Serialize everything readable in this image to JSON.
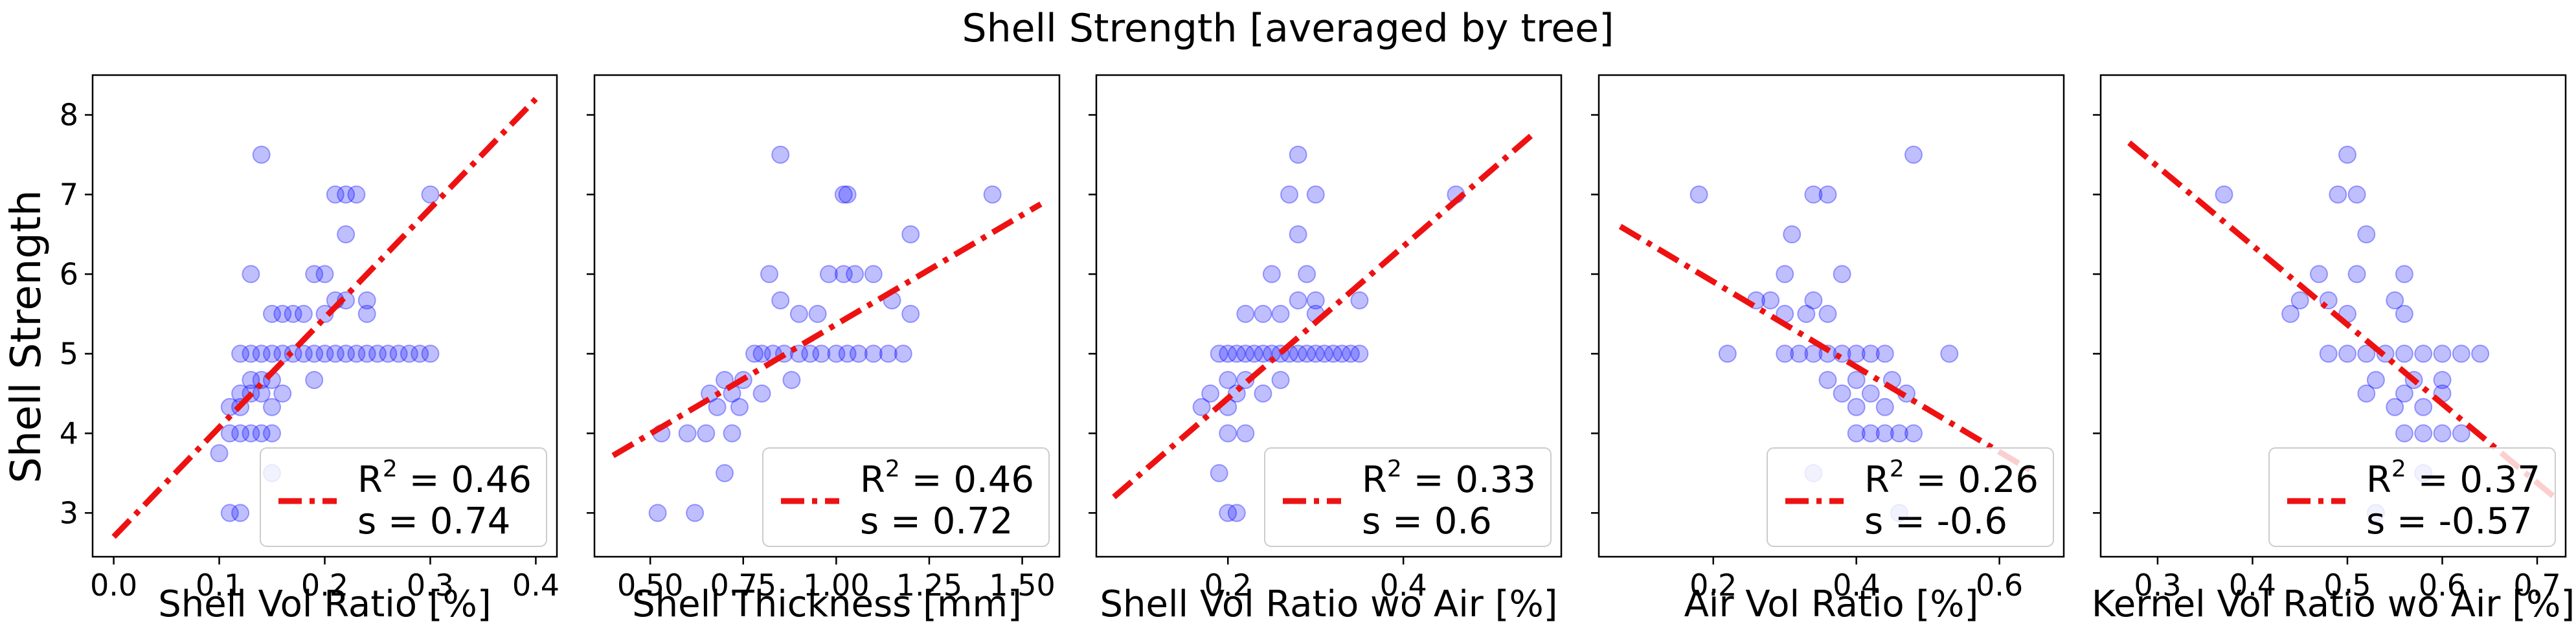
{
  "chart_data": {
    "type": "scatter",
    "title": "Shell Strength [averaged by tree]",
    "ylabel": "Shell Strength",
    "ylim": [
      2.45,
      8.5
    ],
    "yticks": [
      3,
      4,
      5,
      6,
      7,
      8
    ],
    "colors": {
      "points": "#0000ff",
      "fit": "#ee1111",
      "frame": "#000000"
    },
    "legend_placement": "lower right",
    "grid": false,
    "panels": [
      {
        "xlabel": "Shell Vol Ratio [%]",
        "xlim": [
          -0.02,
          0.42
        ],
        "xticks": [
          0.0,
          0.1,
          0.2,
          0.3,
          0.4
        ],
        "xtick_labels": [
          "0.0",
          "0.1",
          "0.2",
          "0.3",
          "0.4"
        ],
        "fit": {
          "x": [
            0.0,
            0.4
          ],
          "y": [
            2.7,
            8.2
          ]
        },
        "legend": {
          "r2_prefix": "R",
          "r2_sup": "2",
          "r2_value": " = 0.46",
          "s_label": "s   = 0.74"
        },
        "points": [
          [
            0.14,
            7.5
          ],
          [
            0.13,
            6.0
          ],
          [
            0.19,
            6.0
          ],
          [
            0.2,
            6.0
          ],
          [
            0.21,
            7.0
          ],
          [
            0.22,
            7.0
          ],
          [
            0.23,
            7.0
          ],
          [
            0.3,
            7.0
          ],
          [
            0.22,
            6.5
          ],
          [
            0.21,
            5.67
          ],
          [
            0.22,
            5.67
          ],
          [
            0.24,
            5.67
          ],
          [
            0.18,
            5.5
          ],
          [
            0.2,
            5.5
          ],
          [
            0.15,
            5.5
          ],
          [
            0.16,
            5.5
          ],
          [
            0.17,
            5.5
          ],
          [
            0.24,
            5.5
          ],
          [
            0.12,
            5.0
          ],
          [
            0.13,
            5.0
          ],
          [
            0.14,
            5.0
          ],
          [
            0.15,
            5.0
          ],
          [
            0.16,
            5.0
          ],
          [
            0.17,
            5.0
          ],
          [
            0.18,
            5.0
          ],
          [
            0.19,
            5.0
          ],
          [
            0.2,
            5.0
          ],
          [
            0.21,
            5.0
          ],
          [
            0.22,
            5.0
          ],
          [
            0.23,
            5.0
          ],
          [
            0.24,
            5.0
          ],
          [
            0.25,
            5.0
          ],
          [
            0.26,
            5.0
          ],
          [
            0.27,
            5.0
          ],
          [
            0.28,
            5.0
          ],
          [
            0.29,
            5.0
          ],
          [
            0.3,
            5.0
          ],
          [
            0.13,
            4.67
          ],
          [
            0.14,
            4.67
          ],
          [
            0.15,
            4.67
          ],
          [
            0.19,
            4.67
          ],
          [
            0.12,
            4.5
          ],
          [
            0.13,
            4.5
          ],
          [
            0.14,
            4.5
          ],
          [
            0.16,
            4.5
          ],
          [
            0.11,
            4.33
          ],
          [
            0.12,
            4.33
          ],
          [
            0.15,
            4.33
          ],
          [
            0.11,
            4.0
          ],
          [
            0.12,
            4.0
          ],
          [
            0.13,
            4.0
          ],
          [
            0.14,
            4.0
          ],
          [
            0.15,
            4.0
          ],
          [
            0.1,
            3.75
          ],
          [
            0.15,
            3.5
          ],
          [
            0.11,
            3.0
          ],
          [
            0.12,
            3.0
          ]
        ]
      },
      {
        "xlabel": "Shell Thickness [mm]",
        "xlim": [
          0.35,
          1.6
        ],
        "xticks": [
          0.5,
          0.75,
          1.0,
          1.25,
          1.5
        ],
        "xtick_labels": [
          "0.50",
          "0.75",
          "1.00",
          "1.25",
          "1.50"
        ],
        "fit": {
          "x": [
            0.4,
            1.55
          ],
          "y": [
            3.72,
            6.88
          ]
        },
        "legend": {
          "r2_prefix": "R",
          "r2_sup": "2",
          "r2_value": " = 0.46",
          "s_label": "s   = 0.72"
        },
        "points": [
          [
            0.85,
            7.5
          ],
          [
            1.42,
            7.0
          ],
          [
            1.02,
            7.0
          ],
          [
            1.03,
            7.0
          ],
          [
            1.2,
            6.5
          ],
          [
            0.82,
            6.0
          ],
          [
            0.98,
            6.0
          ],
          [
            1.02,
            6.0
          ],
          [
            1.05,
            6.0
          ],
          [
            1.1,
            6.0
          ],
          [
            1.15,
            5.67
          ],
          [
            0.85,
            5.67
          ],
          [
            0.9,
            5.5
          ],
          [
            0.95,
            5.5
          ],
          [
            1.2,
            5.5
          ],
          [
            0.78,
            5.0
          ],
          [
            0.8,
            5.0
          ],
          [
            0.83,
            5.0
          ],
          [
            0.86,
            5.0
          ],
          [
            0.9,
            5.0
          ],
          [
            0.93,
            5.0
          ],
          [
            0.96,
            5.0
          ],
          [
            1.0,
            5.0
          ],
          [
            1.03,
            5.0
          ],
          [
            1.06,
            5.0
          ],
          [
            1.1,
            5.0
          ],
          [
            1.14,
            5.0
          ],
          [
            1.18,
            5.0
          ],
          [
            0.7,
            4.67
          ],
          [
            0.75,
            4.67
          ],
          [
            0.88,
            4.67
          ],
          [
            0.66,
            4.5
          ],
          [
            0.72,
            4.5
          ],
          [
            0.8,
            4.5
          ],
          [
            0.68,
            4.33
          ],
          [
            0.74,
            4.33
          ],
          [
            0.6,
            4.0
          ],
          [
            0.65,
            4.0
          ],
          [
            0.72,
            4.0
          ],
          [
            0.53,
            4.0
          ],
          [
            0.7,
            3.5
          ],
          [
            0.52,
            3.0
          ],
          [
            0.62,
            3.0
          ]
        ]
      },
      {
        "xlabel": "Shell Vol Ratio wo Air [%]",
        "xlim": [
          0.05,
          0.58
        ],
        "xticks": [
          0.2,
          0.4
        ],
        "xtick_labels": [
          "0.2",
          "0.4"
        ],
        "fit": {
          "x": [
            0.07,
            0.55
          ],
          "y": [
            3.2,
            7.78
          ]
        },
        "legend": {
          "r2_prefix": "R",
          "r2_sup": "2",
          "r2_value": " = 0.33",
          "s_label": "s   = 0.6"
        },
        "points": [
          [
            0.28,
            7.5
          ],
          [
            0.27,
            7.0
          ],
          [
            0.3,
            7.0
          ],
          [
            0.46,
            7.0
          ],
          [
            0.28,
            6.5
          ],
          [
            0.25,
            6.0
          ],
          [
            0.29,
            6.0
          ],
          [
            0.28,
            5.67
          ],
          [
            0.3,
            5.67
          ],
          [
            0.35,
            5.67
          ],
          [
            0.22,
            5.5
          ],
          [
            0.24,
            5.5
          ],
          [
            0.26,
            5.5
          ],
          [
            0.3,
            5.5
          ],
          [
            0.19,
            5.0
          ],
          [
            0.2,
            5.0
          ],
          [
            0.21,
            5.0
          ],
          [
            0.22,
            5.0
          ],
          [
            0.23,
            5.0
          ],
          [
            0.24,
            5.0
          ],
          [
            0.25,
            5.0
          ],
          [
            0.26,
            5.0
          ],
          [
            0.27,
            5.0
          ],
          [
            0.28,
            5.0
          ],
          [
            0.29,
            5.0
          ],
          [
            0.3,
            5.0
          ],
          [
            0.31,
            5.0
          ],
          [
            0.32,
            5.0
          ],
          [
            0.33,
            5.0
          ],
          [
            0.34,
            5.0
          ],
          [
            0.35,
            5.0
          ],
          [
            0.2,
            4.67
          ],
          [
            0.22,
            4.67
          ],
          [
            0.26,
            4.67
          ],
          [
            0.18,
            4.5
          ],
          [
            0.21,
            4.5
          ],
          [
            0.24,
            4.5
          ],
          [
            0.17,
            4.33
          ],
          [
            0.2,
            4.33
          ],
          [
            0.2,
            4.0
          ],
          [
            0.22,
            4.0
          ],
          [
            0.19,
            3.5
          ],
          [
            0.2,
            3.0
          ],
          [
            0.21,
            3.0
          ]
        ]
      },
      {
        "xlabel": "Air Vol Ratio [%]",
        "xlim": [
          0.04,
          0.69
        ],
        "xticks": [
          0.2,
          0.4,
          0.6
        ],
        "xtick_labels": [
          "0.2",
          "0.4",
          "0.6"
        ],
        "fit": {
          "x": [
            0.07,
            0.65
          ],
          "y": [
            6.6,
            3.5
          ]
        },
        "legend": {
          "r2_prefix": "R",
          "r2_sup": "2",
          "r2_value": " = 0.26",
          "s_label": "s   = -0.6"
        },
        "points": [
          [
            0.48,
            7.5
          ],
          [
            0.18,
            7.0
          ],
          [
            0.34,
            7.0
          ],
          [
            0.36,
            7.0
          ],
          [
            0.31,
            6.5
          ],
          [
            0.3,
            6.0
          ],
          [
            0.38,
            6.0
          ],
          [
            0.26,
            5.67
          ],
          [
            0.28,
            5.67
          ],
          [
            0.34,
            5.67
          ],
          [
            0.3,
            5.5
          ],
          [
            0.33,
            5.5
          ],
          [
            0.36,
            5.5
          ],
          [
            0.22,
            5.0
          ],
          [
            0.3,
            5.0
          ],
          [
            0.32,
            5.0
          ],
          [
            0.34,
            5.0
          ],
          [
            0.36,
            5.0
          ],
          [
            0.38,
            5.0
          ],
          [
            0.4,
            5.0
          ],
          [
            0.42,
            5.0
          ],
          [
            0.44,
            5.0
          ],
          [
            0.53,
            5.0
          ],
          [
            0.36,
            4.67
          ],
          [
            0.4,
            4.67
          ],
          [
            0.45,
            4.67
          ],
          [
            0.38,
            4.5
          ],
          [
            0.42,
            4.5
          ],
          [
            0.47,
            4.5
          ],
          [
            0.4,
            4.33
          ],
          [
            0.44,
            4.33
          ],
          [
            0.4,
            4.0
          ],
          [
            0.42,
            4.0
          ],
          [
            0.44,
            4.0
          ],
          [
            0.46,
            4.0
          ],
          [
            0.48,
            4.0
          ],
          [
            0.34,
            3.5
          ],
          [
            0.46,
            3.0
          ]
        ]
      },
      {
        "xlabel": "Kernel Vol Ratio wo Air [%]",
        "xlim": [
          0.24,
          0.73
        ],
        "xticks": [
          0.3,
          0.4,
          0.5,
          0.6,
          0.7
        ],
        "xtick_labels": [
          "0.3",
          "0.4",
          "0.5",
          "0.6",
          "0.7"
        ],
        "fit": {
          "x": [
            0.27,
            0.72
          ],
          "y": [
            7.65,
            3.18
          ]
        },
        "legend": {
          "r2_prefix": "R",
          "r2_sup": "2",
          "r2_value": " = 0.37",
          "s_label": "s   = -0.57"
        },
        "points": [
          [
            0.5,
            7.5
          ],
          [
            0.37,
            7.0
          ],
          [
            0.49,
            7.0
          ],
          [
            0.51,
            7.0
          ],
          [
            0.52,
            6.5
          ],
          [
            0.47,
            6.0
          ],
          [
            0.51,
            6.0
          ],
          [
            0.56,
            6.0
          ],
          [
            0.45,
            5.67
          ],
          [
            0.48,
            5.67
          ],
          [
            0.55,
            5.67
          ],
          [
            0.44,
            5.5
          ],
          [
            0.5,
            5.5
          ],
          [
            0.56,
            5.5
          ],
          [
            0.48,
            5.0
          ],
          [
            0.5,
            5.0
          ],
          [
            0.52,
            5.0
          ],
          [
            0.54,
            5.0
          ],
          [
            0.56,
            5.0
          ],
          [
            0.58,
            5.0
          ],
          [
            0.6,
            5.0
          ],
          [
            0.62,
            5.0
          ],
          [
            0.64,
            5.0
          ],
          [
            0.53,
            4.67
          ],
          [
            0.57,
            4.67
          ],
          [
            0.6,
            4.67
          ],
          [
            0.52,
            4.5
          ],
          [
            0.56,
            4.5
          ],
          [
            0.6,
            4.5
          ],
          [
            0.55,
            4.33
          ],
          [
            0.58,
            4.33
          ],
          [
            0.56,
            4.0
          ],
          [
            0.58,
            4.0
          ],
          [
            0.6,
            4.0
          ],
          [
            0.62,
            4.0
          ],
          [
            0.58,
            3.5
          ],
          [
            0.53,
            3.0
          ]
        ]
      }
    ]
  }
}
